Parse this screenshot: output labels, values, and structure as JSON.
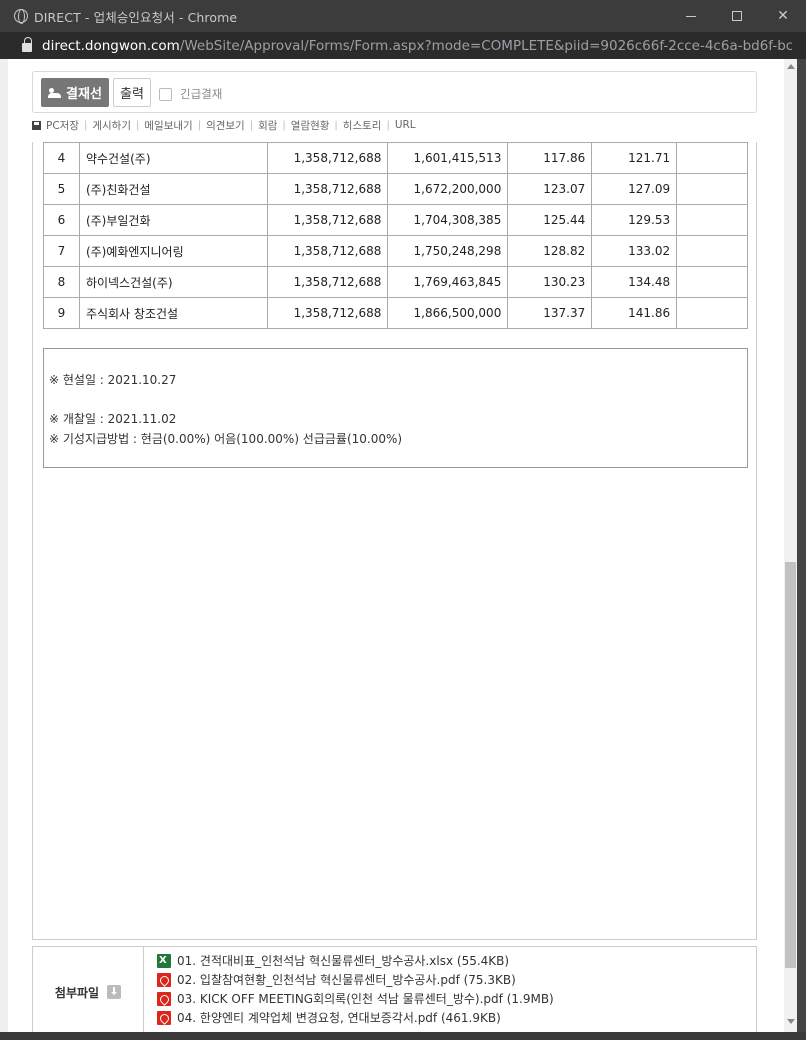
{
  "window": {
    "title": "DIRECT - 업체승인요청서 - Chrome",
    "url_host": "direct.dongwon.com",
    "url_path": "/WebSite/Approval/Forms/Form.aspx?mode=COMPLETE&piid=9026c66f-2cce-4c6a-bd6f-bcf8a..."
  },
  "toolbar": {
    "approve_label": "결재선",
    "print_label": "출력",
    "urgent_label": "긴급결재"
  },
  "links": [
    "PC저장",
    "게시하기",
    "메일보내기",
    "의견보기",
    "회람",
    "열람현황",
    "히스토리",
    "URL"
  ],
  "table": {
    "rows": [
      {
        "no": "4",
        "name": "약수건설(주)",
        "base": "1,358,712,688",
        "bid": "1,601,415,513",
        "r1": "117.86",
        "r2": "121.71",
        "extra": ""
      },
      {
        "no": "5",
        "name": "(주)친화건설",
        "base": "1,358,712,688",
        "bid": "1,672,200,000",
        "r1": "123.07",
        "r2": "127.09",
        "extra": ""
      },
      {
        "no": "6",
        "name": "(주)부일건화",
        "base": "1,358,712,688",
        "bid": "1,704,308,385",
        "r1": "125.44",
        "r2": "129.53",
        "extra": ""
      },
      {
        "no": "7",
        "name": "(주)예화엔지니어링",
        "base": "1,358,712,688",
        "bid": "1,750,248,298",
        "r1": "128.82",
        "r2": "133.02",
        "extra": ""
      },
      {
        "no": "8",
        "name": "하이넥스건설(주)",
        "base": "1,358,712,688",
        "bid": "1,769,463,845",
        "r1": "130.23",
        "r2": "134.48",
        "extra": ""
      },
      {
        "no": "9",
        "name": "주식회사 창조건설",
        "base": "1,358,712,688",
        "bid": "1,866,500,000",
        "r1": "137.37",
        "r2": "141.86",
        "extra": ""
      }
    ]
  },
  "notes": {
    "site_date": "※ 현설일 : 2021.10.27",
    "open_date": "※ 개찰일 : 2021.11.02",
    "payment": "※ 기성지급방법 : 현금(0.00%) 어음(100.00%) 선급금률(10.00%)"
  },
  "attachments": {
    "label": "첨부파일",
    "files": [
      {
        "type": "xls",
        "name": "01. 견적대비표_인천석남 혁신물류센터_방수공사.xlsx (55.4KB)"
      },
      {
        "type": "pdf",
        "name": "02. 입찰참여현황_인천석남 혁신물류센터_방수공사.pdf (75.3KB)"
      },
      {
        "type": "pdf",
        "name": "03. KICK OFF MEETING회의록(인천 석남 물류센터_방수).pdf (1.9MB)"
      },
      {
        "type": "pdf",
        "name": "04. 한양엔티 계약업체 변경요청, 연대보증각서.pdf (461.9KB)"
      }
    ]
  }
}
